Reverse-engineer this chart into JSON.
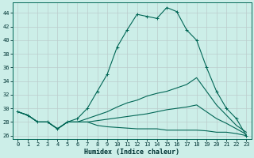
{
  "xlabel": "Humidex (Indice chaleur)",
  "bg_color": "#cceee8",
  "grid_color": "#aaddcc",
  "line_color": "#006655",
  "xlim": [
    -0.5,
    23.5
  ],
  "ylim": [
    25.5,
    45.5
  ],
  "yticks": [
    26,
    28,
    30,
    32,
    34,
    36,
    38,
    40,
    42,
    44
  ],
  "xticks": [
    0,
    1,
    2,
    3,
    4,
    5,
    6,
    7,
    8,
    9,
    10,
    11,
    12,
    13,
    14,
    15,
    16,
    17,
    18,
    19,
    20,
    21,
    22,
    23
  ],
  "series": [
    {
      "x": [
        0,
        1,
        2,
        3,
        4,
        5,
        6,
        7,
        8,
        9,
        10,
        11,
        12,
        13,
        14,
        15,
        16,
        17,
        18,
        19,
        20,
        21,
        22,
        23
      ],
      "y": [
        29.5,
        29.0,
        28.0,
        28.0,
        27.0,
        28.0,
        28.5,
        30.0,
        32.5,
        35.0,
        39.0,
        41.5,
        43.8,
        43.5,
        43.2,
        44.8,
        44.2,
        41.5,
        40.0,
        36.0,
        32.5,
        30.0,
        28.5,
        26.0
      ],
      "marker": "+"
    },
    {
      "x": [
        0,
        1,
        2,
        3,
        4,
        5,
        6,
        7,
        8,
        9,
        10,
        11,
        12,
        13,
        14,
        15,
        16,
        17,
        18,
        19,
        20,
        21,
        22,
        23
      ],
      "y": [
        29.5,
        29.0,
        28.0,
        28.0,
        27.0,
        28.0,
        28.0,
        28.5,
        29.0,
        29.5,
        30.2,
        30.8,
        31.2,
        31.8,
        32.2,
        32.5,
        33.0,
        33.5,
        34.5,
        32.5,
        30.5,
        29.0,
        27.5,
        26.5
      ],
      "marker": null
    },
    {
      "x": [
        0,
        1,
        2,
        3,
        4,
        5,
        6,
        7,
        8,
        9,
        10,
        11,
        12,
        13,
        14,
        15,
        16,
        17,
        18,
        19,
        20,
        21,
        22,
        23
      ],
      "y": [
        29.5,
        29.0,
        28.0,
        28.0,
        27.0,
        28.0,
        28.0,
        28.0,
        28.2,
        28.4,
        28.6,
        28.8,
        29.0,
        29.2,
        29.5,
        29.8,
        30.0,
        30.2,
        30.5,
        29.5,
        28.5,
        27.8,
        27.0,
        26.2
      ],
      "marker": null
    },
    {
      "x": [
        0,
        1,
        2,
        3,
        4,
        5,
        6,
        7,
        8,
        9,
        10,
        11,
        12,
        13,
        14,
        15,
        16,
        17,
        18,
        19,
        20,
        21,
        22,
        23
      ],
      "y": [
        29.5,
        29.0,
        28.0,
        28.0,
        27.0,
        28.0,
        28.0,
        28.0,
        27.5,
        27.3,
        27.2,
        27.1,
        27.0,
        27.0,
        27.0,
        26.8,
        26.8,
        26.8,
        26.8,
        26.7,
        26.5,
        26.5,
        26.3,
        26.0
      ],
      "marker": null
    }
  ]
}
